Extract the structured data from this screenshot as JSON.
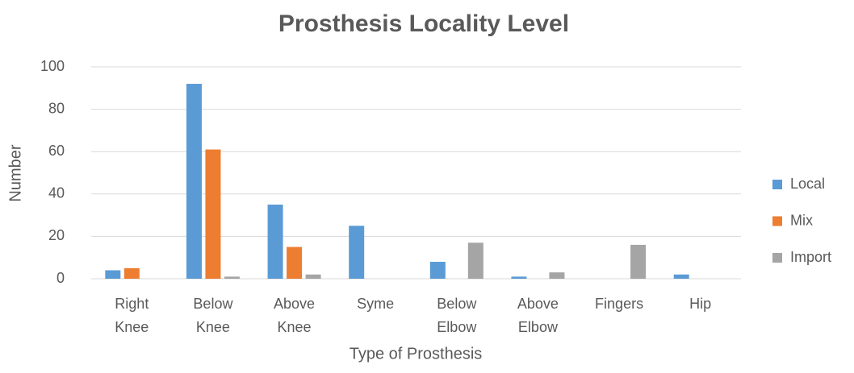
{
  "chart_data": {
    "type": "bar",
    "title": "Prosthesis Locality Level",
    "x_label": "Type of Prosthesis",
    "y_label": "Number",
    "categories": [
      "Right Knee",
      "Below Knee",
      "Above Knee",
      "Syme",
      "Below Elbow",
      "Above Elbow",
      "Fingers",
      "Hip"
    ],
    "series": [
      {
        "name": "Local",
        "color": "#5b9bd5",
        "values": [
          4,
          92,
          35,
          25,
          8,
          1,
          0,
          2
        ]
      },
      {
        "name": "Mix",
        "color": "#ed7d31",
        "values": [
          5,
          61,
          15,
          0,
          0,
          0,
          0,
          0
        ]
      },
      {
        "name": "Import",
        "color": "#a5a5a5",
        "values": [
          0,
          1,
          2,
          0,
          17,
          3,
          16,
          0
        ]
      }
    ],
    "ylim": [
      0,
      100
    ],
    "yticks": [
      0,
      20,
      40,
      60,
      80,
      100
    ],
    "grid": true,
    "legend": "right"
  }
}
